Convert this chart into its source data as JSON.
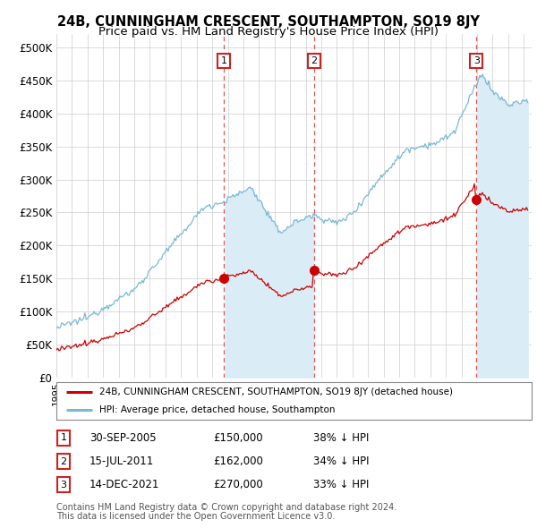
{
  "title": "24B, CUNNINGHAM CRESCENT, SOUTHAMPTON, SO19 8JY",
  "subtitle": "Price paid vs. HM Land Registry's House Price Index (HPI)",
  "ylabel_ticks": [
    "£0",
    "£50K",
    "£100K",
    "£150K",
    "£200K",
    "£250K",
    "£300K",
    "£350K",
    "£400K",
    "£450K",
    "£500K"
  ],
  "ytick_values": [
    0,
    50000,
    100000,
    150000,
    200000,
    250000,
    300000,
    350000,
    400000,
    450000,
    500000
  ],
  "ylim": [
    0,
    520000
  ],
  "xlim_start": 1995.0,
  "xlim_end": 2025.5,
  "sale_decimal": [
    2005.75,
    2011.54,
    2021.95
  ],
  "sale_prices": [
    150000,
    162000,
    270000
  ],
  "sale_labels": [
    "1",
    "2",
    "3"
  ],
  "sale_pct_below": [
    "38%",
    "34%",
    "33%"
  ],
  "sale_label_dates": [
    "30-SEP-2005",
    "15-JUL-2011",
    "14-DEC-2021"
  ],
  "hpi_color": "#7bb8d4",
  "hpi_fill_color": "#daedf7",
  "sale_color": "#cc0000",
  "vline_color": "#dd4444",
  "legend_label_red": "24B, CUNNINGHAM CRESCENT, SOUTHAMPTON, SO19 8JY (detached house)",
  "legend_label_blue": "HPI: Average price, detached house, Southampton",
  "footer1": "Contains HM Land Registry data © Crown copyright and database right 2024.",
  "footer2": "This data is licensed under the Open Government Licence v3.0.",
  "background_color": "#ffffff",
  "grid_color": "#cccccc",
  "title_fontsize": 10.5,
  "subtitle_fontsize": 9.5
}
